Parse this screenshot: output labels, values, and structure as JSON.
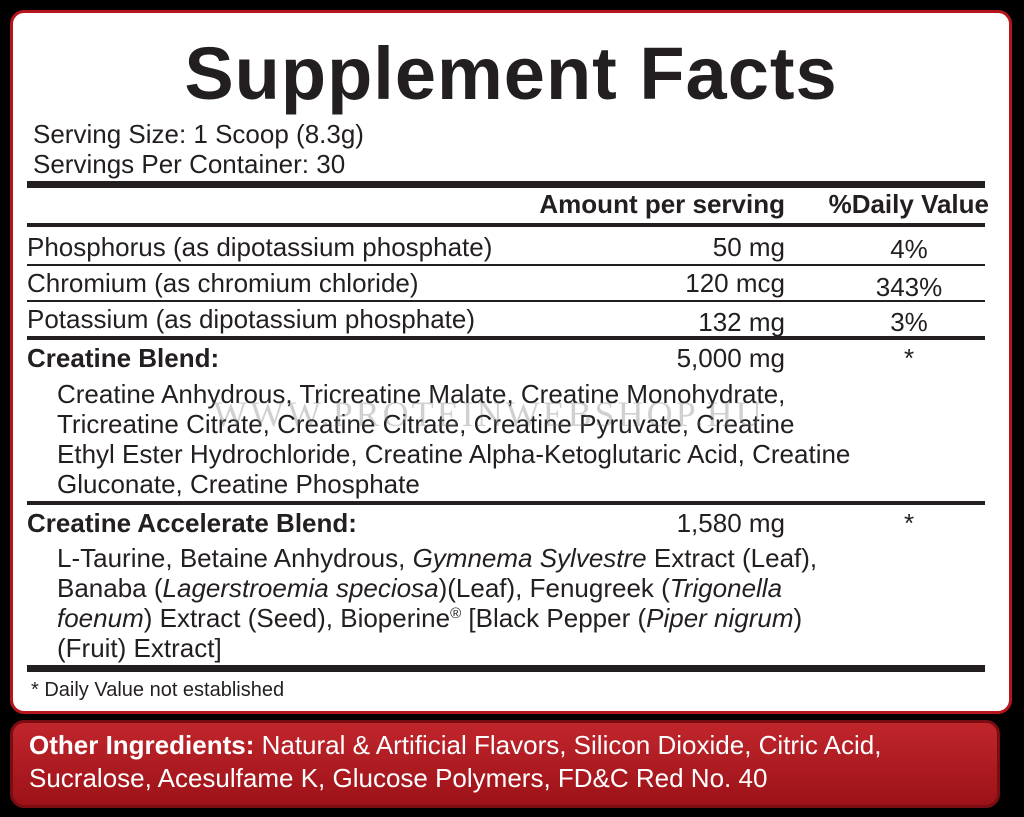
{
  "title": "Supplement Facts",
  "serving_size": "Serving Size: 1 Scoop (8.3g)",
  "servings_per_container": "Servings Per Container: 30",
  "header": {
    "amount": "Amount per serving",
    "daily_value": "%Daily Value"
  },
  "rows": [
    {
      "name": "Phosphorus (as dipotassium phosphate)",
      "amount": "50 mg",
      "daily_value": "4%"
    },
    {
      "name": "Chromium (as chromium chloride)",
      "amount": "120 mcg",
      "daily_value": "343%"
    },
    {
      "name": "Potassium (as dipotassium phosphate)",
      "amount": "132 mg",
      "daily_value": "3%"
    }
  ],
  "blends": [
    {
      "name": "Creatine Blend:",
      "amount": "5,000 mg",
      "daily_value": "*",
      "ingredients": [
        "Creatine Anhydrous, Tricreatine Malate, Creatine Monohydrate, Tricreatine Citrate, Creatine Citrate, Creatine Pyruvate, Creatine Ethyl Ester Hydrochloride, Creatine Alpha-Ketoglutaric Acid, Creatine Gluconate, Creatine Phosphate"
      ]
    },
    {
      "name": "Creatine Accelerate Blend:",
      "amount": "1,580 mg",
      "daily_value": "*",
      "ingredients": [
        "L-Taurine, Betaine Anhydrous, ",
        "Gymnema Sylvestre",
        " Extract (Leaf), Banaba (",
        "Lagerstroemia speciosa",
        ")(Leaf), Fenugreek (",
        "Trigonella foenum",
        ") Extract (Seed), Bioperine",
        "®",
        " [Black Pepper (",
        "Piper nigrum",
        ") (Fruit) Extract]"
      ]
    }
  ],
  "footnote": "* Daily Value not established",
  "watermark": "WWW.PROTEINWEBSHOP.HU",
  "other_ingredients": {
    "label": "Other Ingredients:",
    "text": " Natural & Artificial Flavors, Silicon Dioxide, Citric Acid, Sucralose, Acesulfame K, Glucose Polymers, FD&C Red No. 40"
  }
}
